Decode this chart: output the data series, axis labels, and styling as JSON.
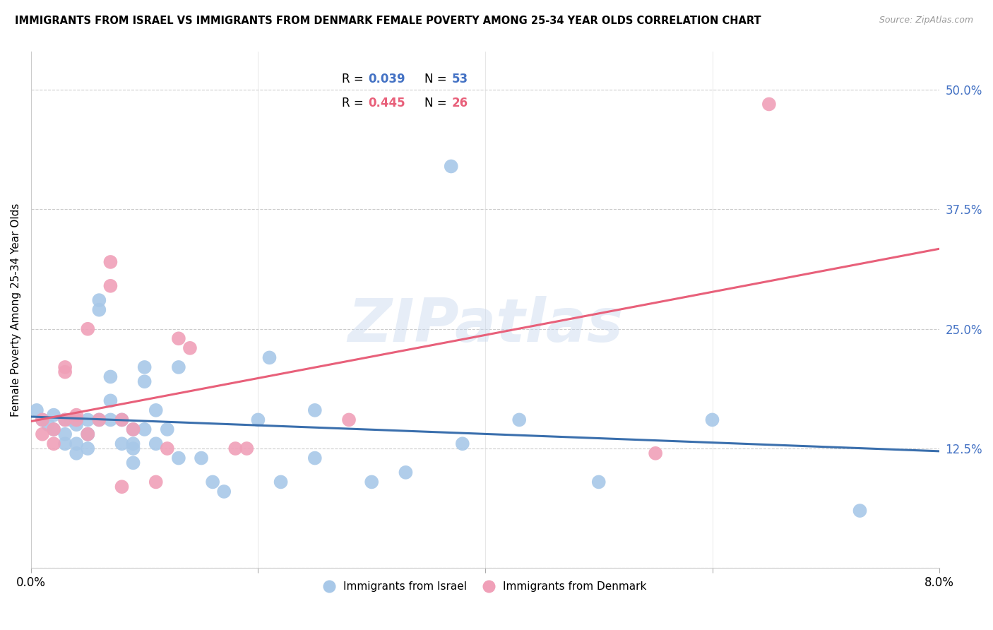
{
  "title": "IMMIGRANTS FROM ISRAEL VS IMMIGRANTS FROM DENMARK FEMALE POVERTY AMONG 25-34 YEAR OLDS CORRELATION CHART",
  "source": "Source: ZipAtlas.com",
  "ylabel": "Female Poverty Among 25-34 Year Olds",
  "xlim": [
    0.0,
    0.08
  ],
  "ylim": [
    0.0,
    0.54
  ],
  "yticks_right": [
    0.0,
    0.125,
    0.25,
    0.375,
    0.5
  ],
  "ytick_labels_right": [
    "",
    "12.5%",
    "25.0%",
    "37.5%",
    "50.0%"
  ],
  "xticks": [
    0.0,
    0.02,
    0.04,
    0.06,
    0.08
  ],
  "xtick_labels": [
    "0.0%",
    "",
    "",
    "",
    "8.0%"
  ],
  "watermark": "ZIPatlas",
  "israel_color": "#a8c8e8",
  "denmark_color": "#f0a0b8",
  "israel_line_color": "#3a6fad",
  "denmark_line_color": "#e8607a",
  "israel_x": [
    0.0005,
    0.001,
    0.0015,
    0.002,
    0.002,
    0.003,
    0.003,
    0.003,
    0.0035,
    0.004,
    0.004,
    0.004,
    0.004,
    0.005,
    0.005,
    0.005,
    0.005,
    0.006,
    0.006,
    0.006,
    0.007,
    0.007,
    0.007,
    0.008,
    0.008,
    0.009,
    0.009,
    0.009,
    0.009,
    0.01,
    0.01,
    0.01,
    0.011,
    0.011,
    0.012,
    0.013,
    0.013,
    0.015,
    0.016,
    0.017,
    0.02,
    0.021,
    0.022,
    0.025,
    0.025,
    0.03,
    0.033,
    0.037,
    0.038,
    0.043,
    0.05,
    0.06,
    0.073
  ],
  "israel_y": [
    0.165,
    0.155,
    0.15,
    0.16,
    0.145,
    0.155,
    0.14,
    0.13,
    0.155,
    0.12,
    0.13,
    0.155,
    0.15,
    0.14,
    0.155,
    0.14,
    0.125,
    0.28,
    0.27,
    0.155,
    0.2,
    0.175,
    0.155,
    0.155,
    0.13,
    0.125,
    0.11,
    0.13,
    0.145,
    0.21,
    0.195,
    0.145,
    0.165,
    0.13,
    0.145,
    0.21,
    0.115,
    0.115,
    0.09,
    0.08,
    0.155,
    0.22,
    0.09,
    0.165,
    0.115,
    0.09,
    0.1,
    0.42,
    0.13,
    0.155,
    0.09,
    0.155,
    0.06
  ],
  "denmark_x": [
    0.001,
    0.001,
    0.002,
    0.002,
    0.003,
    0.003,
    0.003,
    0.004,
    0.004,
    0.005,
    0.005,
    0.006,
    0.007,
    0.007,
    0.008,
    0.008,
    0.009,
    0.011,
    0.012,
    0.013,
    0.014,
    0.018,
    0.019,
    0.028,
    0.055,
    0.065
  ],
  "denmark_y": [
    0.155,
    0.14,
    0.145,
    0.13,
    0.155,
    0.21,
    0.205,
    0.155,
    0.16,
    0.14,
    0.25,
    0.155,
    0.32,
    0.295,
    0.155,
    0.085,
    0.145,
    0.09,
    0.125,
    0.24,
    0.23,
    0.125,
    0.125,
    0.155,
    0.12,
    0.485
  ]
}
